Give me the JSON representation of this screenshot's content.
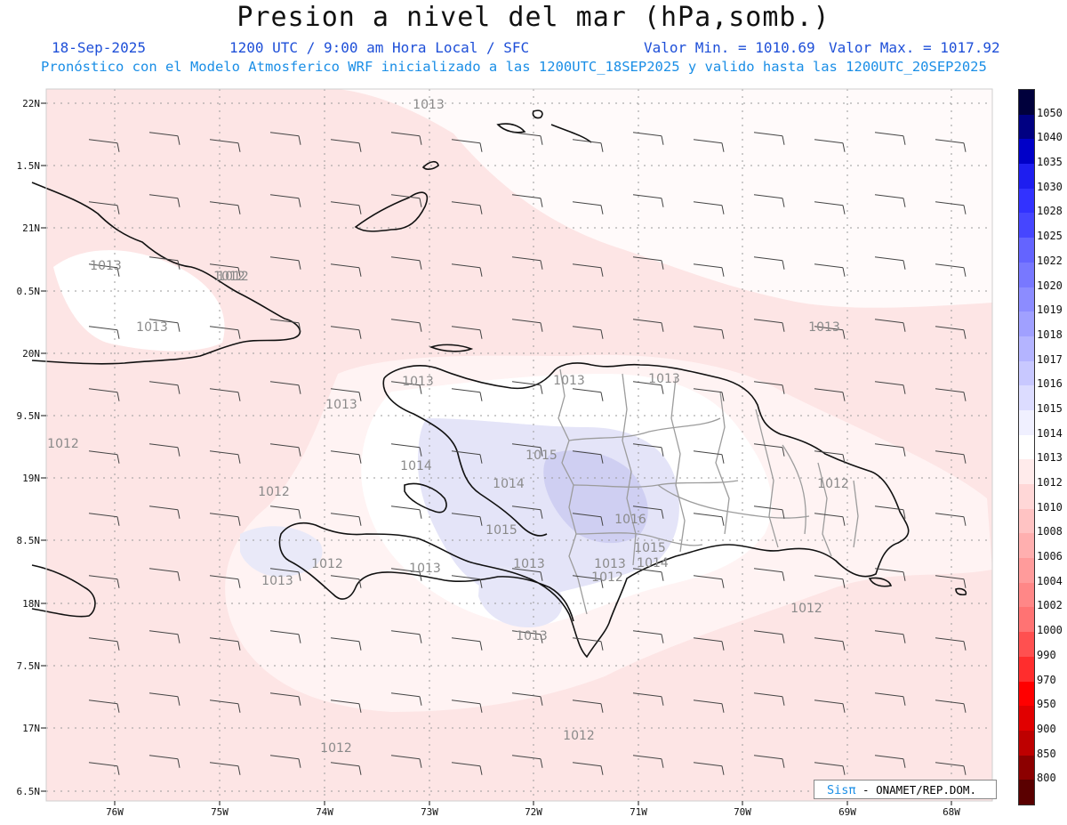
{
  "title": "Presion a nivel del mar (hPa,somb.)",
  "header": {
    "date": "18-Sep-2025",
    "time": "1200 UTC / 9:00 am Hora Local / SFC",
    "value_min": "Valor Min. = 1010.69",
    "value_max": "Valor Max. = 1017.92",
    "init_line": "Pronóstico con el Modelo Atmosferico WRF inicializado a las 1200UTC_18SEP2025 y valido hasta las  1200UTC_20SEP2025"
  },
  "map": {
    "lat_labels": [
      "22N",
      "1.5N",
      "21N",
      "0.5N",
      "20N",
      "9.5N",
      "19N",
      "8.5N",
      "18N",
      "7.5N",
      "17N",
      "6.5N"
    ],
    "lon_labels": [
      "76W",
      "75W",
      "74W",
      "73W",
      "72W",
      "71W",
      "70W",
      "69W",
      "68W"
    ],
    "contour_labels": [
      "1013",
      "1013",
      "1012",
      "1013",
      "1013",
      "1013",
      "1013",
      "1013",
      "1013",
      "1012",
      "1012",
      "1014",
      "1015",
      "1014",
      "1012",
      "1015",
      "1016",
      "1015",
      "1013",
      "1012",
      "1014",
      "1013",
      "1012",
      "1013",
      "1012",
      "1013",
      "1012",
      "1012",
      "1013",
      "1012"
    ],
    "colors": {
      "ocean_1012": "#fde5e5",
      "land_1013": "#fff0f0",
      "high_1015": "#dcdcf8",
      "high_1016": "#c4c4f0",
      "coast": "#111111",
      "border": "#999999"
    }
  },
  "colorbar": {
    "levels": [
      "1050",
      "1040",
      "1035",
      "1030",
      "1028",
      "1025",
      "1022",
      "1020",
      "1019",
      "1018",
      "1017",
      "1016",
      "1015",
      "1014",
      "1013",
      "1012",
      "1010",
      "1008",
      "1006",
      "1004",
      "1002",
      "1000",
      "990",
      "970",
      "950",
      "900",
      "850",
      "800"
    ],
    "colors": [
      "#00003c",
      "#000082",
      "#0000c8",
      "#1e1ef0",
      "#3232ff",
      "#4646ff",
      "#6464ff",
      "#7878ff",
      "#8c8cff",
      "#a0a0ff",
      "#b4b4ff",
      "#c8c8ff",
      "#dcdcff",
      "#f0f0ff",
      "#ffffff",
      "#ffebeb",
      "#ffd7d7",
      "#ffc3c3",
      "#ffafaf",
      "#ff9b9b",
      "#ff8787",
      "#ff7373",
      "#ff5050",
      "#ff2d2d",
      "#ff0000",
      "#e10000",
      "#be0000",
      "#8c0000",
      "#5a0000"
    ]
  },
  "credit": {
    "brand": "Sisπ",
    "text": "- ONAMET/REP.DOM."
  }
}
